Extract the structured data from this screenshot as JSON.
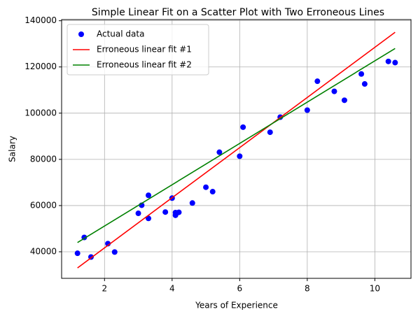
{
  "chart_data": {
    "type": "scatter",
    "title": "Simple Linear Fit on a Scatter Plot with Two Erroneous Lines",
    "x_label": "Years of Experience",
    "y_label": "Salary",
    "xlim": [
      0.73,
      11.07
    ],
    "ylim": [
      28500,
      140500
    ],
    "xticks": [
      2,
      4,
      6,
      8,
      10
    ],
    "yticks": [
      40000,
      60000,
      80000,
      100000,
      120000,
      140000
    ],
    "grid": true,
    "legend": "upper-left",
    "series": [
      {
        "name": "Actual data",
        "kind": "scatter",
        "color": "#0000ff",
        "x": [
          1.2,
          1.4,
          1.6,
          2.1,
          2.3,
          3.0,
          3.1,
          3.3,
          3.3,
          3.8,
          4.0,
          4.1,
          4.1,
          4.2,
          4.6,
          5.0,
          5.2,
          5.4,
          6.0,
          6.1,
          6.9,
          7.2,
          8.0,
          8.3,
          8.8,
          9.1,
          9.6,
          9.7,
          10.4,
          10.6
        ],
        "values": [
          39343,
          46205,
          37731,
          43525,
          39891,
          56642,
          60150,
          54445,
          64445,
          57189,
          63218,
          55794,
          56957,
          57081,
          61111,
          67938,
          66029,
          83088,
          81363,
          93940,
          91738,
          98273,
          101302,
          113812,
          109431,
          105582,
          116969,
          112635,
          122391,
          121872
        ]
      },
      {
        "name": "Erroneous linear fit #1",
        "kind": "line",
        "color": "#ff0000",
        "x": [
          1.2,
          10.6
        ],
        "values": [
          33000,
          135000
        ]
      },
      {
        "name": "Erroneous linear fit #2",
        "kind": "line",
        "color": "#008000",
        "x": [
          1.2,
          10.6
        ],
        "values": [
          44000,
          128000
        ]
      }
    ]
  }
}
